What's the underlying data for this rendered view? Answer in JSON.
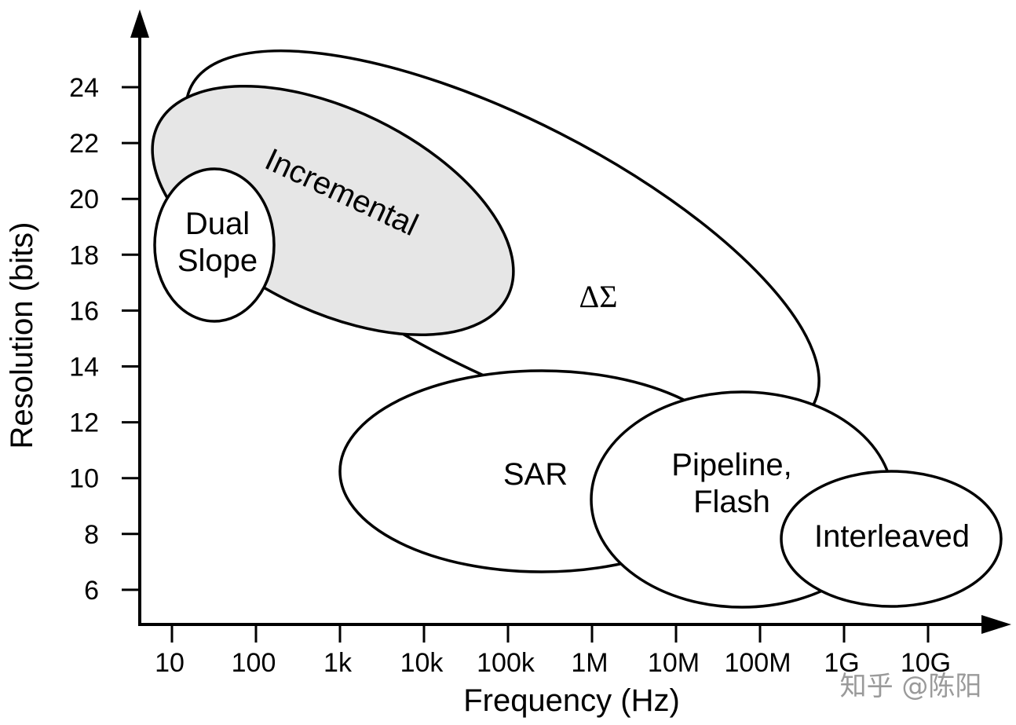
{
  "y_axis": {
    "label": "Resolution (bits)",
    "ticks": [
      "24",
      "22",
      "20",
      "18",
      "16",
      "14",
      "12",
      "10",
      "8",
      "6"
    ]
  },
  "x_axis": {
    "label": "Frequency (Hz)",
    "ticks": [
      "10",
      "100",
      "1k",
      "10k",
      "100k",
      "1M",
      "10M",
      "100M",
      "1G",
      "10G"
    ]
  },
  "regions": {
    "delta_sigma": "ΔΣ",
    "incremental": "Incremental",
    "dual_slope": [
      "Dual",
      "Slope"
    ],
    "sar": "SAR",
    "pipeline": [
      "Pipeline,",
      "Flash"
    ],
    "interleaved": "Interleaved"
  },
  "watermark": "知乎 @陈阳",
  "colors": {
    "incremental_fill": "#e6e6e6",
    "stroke": "#000000"
  }
}
